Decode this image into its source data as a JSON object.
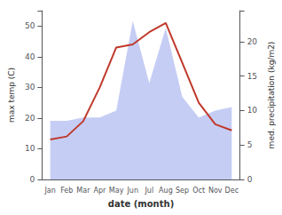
{
  "chart_data": {
    "type": "line",
    "xlabel": "date (month)",
    "ylabel": "max temp (C)",
    "y2label": "med. precipitation (kg/m2)",
    "categories": [
      "Jan",
      "Feb",
      "Mar",
      "Apr",
      "May",
      "Jun",
      "Jul",
      "Aug",
      "Sep",
      "Oct",
      "Nov",
      "Dec"
    ],
    "series": [
      {
        "type": "area",
        "axis": "y2",
        "color": "#c5cdf5",
        "values": [
          8.5,
          8.5,
          9,
          9,
          10,
          23,
          14,
          22,
          12,
          9,
          10,
          10.5
        ]
      },
      {
        "type": "line",
        "color": "#c0392b",
        "values": [
          13,
          14,
          19,
          30,
          43,
          44,
          48,
          51,
          38,
          25,
          18,
          16
        ]
      }
    ],
    "ylim": [
      0,
      55
    ],
    "yticks": [
      0,
      10,
      20,
      30,
      40,
      50
    ],
    "y2lim": [
      0,
      24.5
    ],
    "y2ticks": [
      0,
      5,
      10,
      15,
      20
    ],
    "grid": false
  }
}
